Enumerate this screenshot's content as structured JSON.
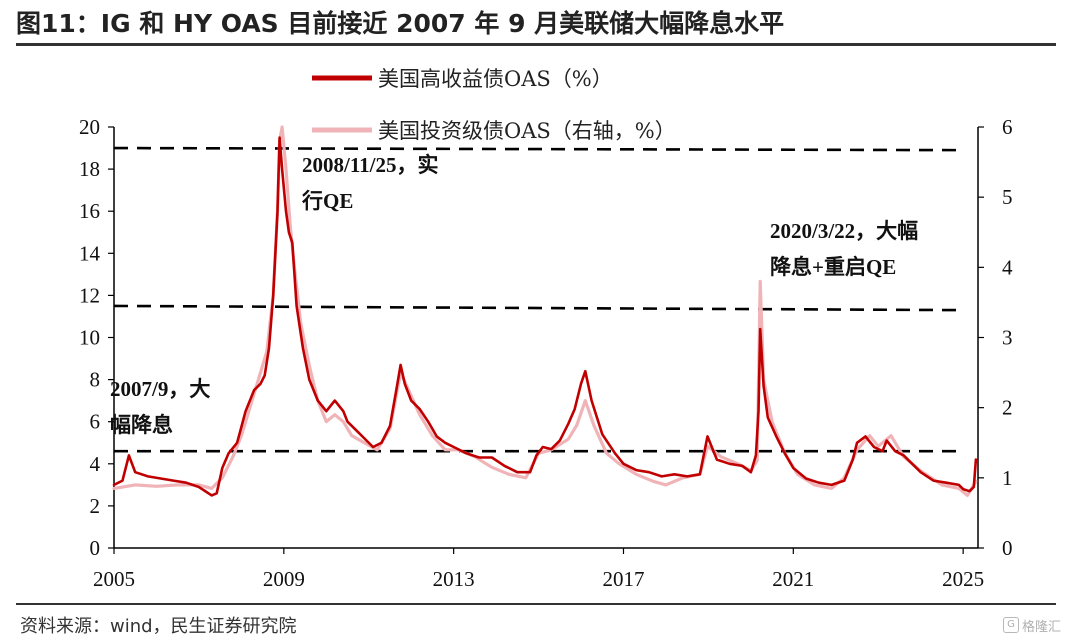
{
  "title": "图11：IG 和 HY OAS 目前接近 2007 年 9 月美联储大幅降息水平",
  "source": "资料来源：wind，民生证券研究院",
  "watermark": "格隆汇",
  "colors": {
    "hy": "#c00000",
    "ig": "#f0b4b8",
    "reference_line": "#000000",
    "axis": "#000000"
  },
  "chart_data": {
    "type": "line",
    "x_ticks": [
      "2005",
      "2009",
      "2013",
      "2017",
      "2021",
      "2025"
    ],
    "x_range": [
      2005,
      2025.35
    ],
    "y_left": {
      "ticks": [
        0,
        2,
        4,
        6,
        8,
        10,
        12,
        14,
        16,
        18,
        20
      ],
      "range": [
        0,
        20
      ]
    },
    "y_right": {
      "ticks": [
        0,
        1,
        2,
        3,
        4,
        5,
        6
      ],
      "range": [
        0,
        6
      ]
    },
    "legend": [
      "美国高收益债OAS（%）",
      "美国投资级债OAS（右轴，%）"
    ],
    "series": [
      {
        "name": "美国高收益债OAS（%）",
        "axis": "left",
        "x": [
          2005.0,
          2005.2,
          2005.35,
          2005.5,
          2005.8,
          2006.1,
          2006.4,
          2006.7,
          2007.0,
          2007.3,
          2007.42,
          2007.55,
          2007.7,
          2007.9,
          2008.1,
          2008.3,
          2008.45,
          2008.55,
          2008.65,
          2008.75,
          2008.85,
          2008.9,
          2008.96,
          2009.05,
          2009.12,
          2009.2,
          2009.3,
          2009.45,
          2009.6,
          2009.8,
          2010.0,
          2010.2,
          2010.4,
          2010.5,
          2010.7,
          2010.9,
          2011.1,
          2011.3,
          2011.5,
          2011.65,
          2011.75,
          2011.85,
          2012.0,
          2012.2,
          2012.4,
          2012.6,
          2012.8,
          2013.0,
          2013.3,
          2013.6,
          2013.9,
          2014.2,
          2014.5,
          2014.8,
          2014.95,
          2015.1,
          2015.3,
          2015.5,
          2015.7,
          2015.85,
          2016.0,
          2016.1,
          2016.25,
          2016.5,
          2016.8,
          2017.0,
          2017.3,
          2017.6,
          2017.9,
          2018.2,
          2018.5,
          2018.8,
          2018.98,
          2019.2,
          2019.5,
          2019.8,
          2020.0,
          2020.12,
          2020.18,
          2020.22,
          2020.3,
          2020.4,
          2020.6,
          2020.8,
          2021.0,
          2021.3,
          2021.6,
          2021.9,
          2022.2,
          2022.4,
          2022.5,
          2022.7,
          2022.9,
          2023.1,
          2023.2,
          2023.4,
          2023.6,
          2023.8,
          2024.0,
          2024.3,
          2024.6,
          2024.9,
          2025.0,
          2025.15,
          2025.25,
          2025.3
        ],
        "values": [
          3.0,
          3.2,
          4.4,
          3.6,
          3.4,
          3.3,
          3.2,
          3.1,
          2.9,
          2.5,
          2.6,
          3.8,
          4.5,
          5.0,
          6.5,
          7.5,
          7.8,
          8.2,
          9.5,
          12.0,
          16.0,
          19.5,
          18.0,
          16.0,
          15.0,
          14.5,
          11.5,
          9.5,
          8.0,
          7.0,
          6.5,
          7.0,
          6.5,
          6.0,
          5.6,
          5.2,
          4.8,
          5.0,
          5.8,
          7.5,
          8.7,
          7.8,
          7.0,
          6.6,
          6.0,
          5.3,
          5.0,
          4.8,
          4.5,
          4.3,
          4.3,
          3.9,
          3.6,
          3.6,
          4.4,
          4.8,
          4.7,
          5.1,
          5.9,
          6.6,
          7.8,
          8.4,
          7.0,
          5.4,
          4.5,
          4.0,
          3.7,
          3.6,
          3.4,
          3.5,
          3.4,
          3.5,
          5.3,
          4.2,
          4.0,
          3.9,
          3.6,
          4.4,
          6.5,
          10.4,
          7.7,
          6.2,
          5.3,
          4.5,
          3.8,
          3.3,
          3.1,
          3.0,
          3.2,
          4.2,
          5.0,
          5.3,
          4.8,
          4.6,
          5.1,
          4.6,
          4.4,
          4.0,
          3.6,
          3.2,
          3.1,
          3.0,
          2.8,
          2.7,
          2.9,
          4.2
        ]
      },
      {
        "name": "美国投资级债OAS（右轴，%）",
        "axis": "right",
        "x": [
          2005.0,
          2005.5,
          2006.0,
          2006.5,
          2007.0,
          2007.3,
          2007.55,
          2007.8,
          2008.0,
          2008.2,
          2008.45,
          2008.6,
          2008.75,
          2008.85,
          2008.9,
          2008.96,
          2009.05,
          2009.15,
          2009.25,
          2009.4,
          2009.6,
          2009.8,
          2010.0,
          2010.2,
          2010.4,
          2010.6,
          2010.9,
          2011.2,
          2011.5,
          2011.75,
          2011.9,
          2012.2,
          2012.5,
          2012.8,
          2013.1,
          2013.5,
          2013.9,
          2014.3,
          2014.7,
          2015.0,
          2015.3,
          2015.7,
          2015.9,
          2016.1,
          2016.3,
          2016.6,
          2016.9,
          2017.3,
          2017.7,
          2018.0,
          2018.4,
          2018.8,
          2018.98,
          2019.3,
          2019.7,
          2020.0,
          2020.15,
          2020.22,
          2020.3,
          2020.5,
          2020.8,
          2021.1,
          2021.5,
          2021.9,
          2022.2,
          2022.5,
          2022.8,
          2023.0,
          2023.3,
          2023.6,
          2024.0,
          2024.5,
          2024.9,
          2025.1,
          2025.3
        ],
        "values": [
          0.85,
          0.9,
          0.88,
          0.9,
          0.9,
          0.85,
          1.0,
          1.3,
          1.6,
          2.0,
          2.5,
          2.8,
          3.6,
          4.8,
          5.8,
          6.0,
          5.4,
          4.6,
          4.0,
          3.2,
          2.6,
          2.1,
          1.8,
          1.9,
          1.8,
          1.6,
          1.5,
          1.4,
          1.7,
          2.5,
          2.3,
          1.9,
          1.6,
          1.4,
          1.4,
          1.3,
          1.15,
          1.05,
          1.0,
          1.35,
          1.4,
          1.55,
          1.75,
          2.1,
          1.75,
          1.35,
          1.2,
          1.05,
          0.95,
          0.9,
          1.0,
          1.05,
          1.45,
          1.3,
          1.2,
          1.1,
          1.25,
          3.8,
          2.4,
          1.8,
          1.35,
          1.05,
          0.9,
          0.85,
          1.0,
          1.4,
          1.6,
          1.45,
          1.6,
          1.3,
          1.1,
          0.9,
          0.85,
          0.75,
          0.95
        ]
      }
    ],
    "reference_lines": [
      {
        "axis": "left",
        "y_start": 19.0,
        "y_end": 18.9,
        "x_start": 2005.0,
        "x_end": 2025.0
      },
      {
        "axis": "left",
        "y_start": 11.5,
        "y_end": 11.3,
        "x_start": 2005.0,
        "x_end": 2025.0
      },
      {
        "axis": "left",
        "y_start": 4.6,
        "y_end": 4.6,
        "x_start": 2005.0,
        "x_end": 2025.0
      }
    ],
    "annotations": [
      {
        "lines": [
          "2008/11/25，实",
          "行QE"
        ]
      },
      {
        "lines": [
          "2020/3/22，大幅",
          "降息+重启QE"
        ]
      },
      {
        "lines": [
          "2007/9，大",
          "幅降息"
        ]
      }
    ]
  }
}
